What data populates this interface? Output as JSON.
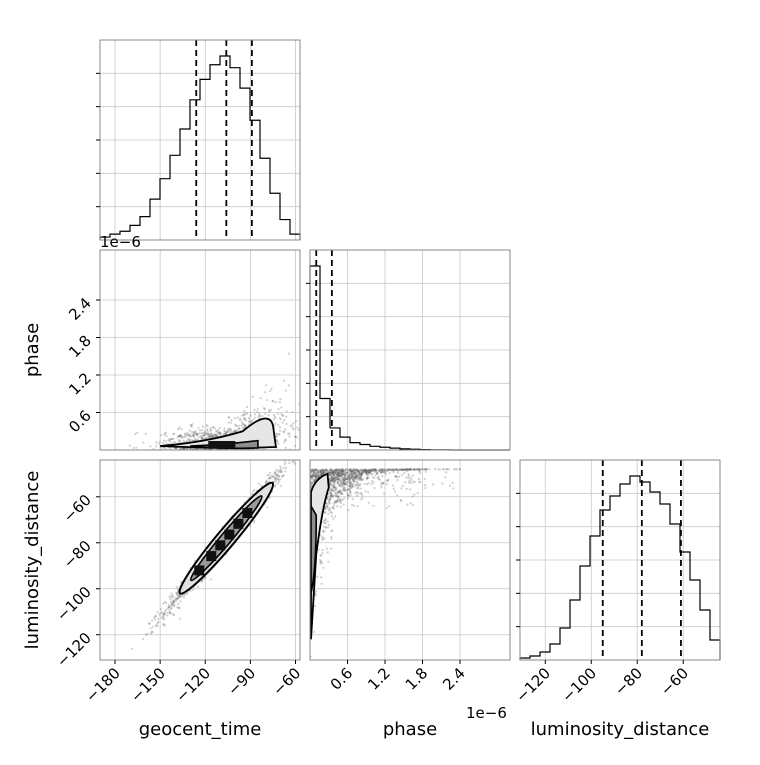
{
  "chart_data": {
    "type": "corner",
    "parameters": [
      "geocent_time",
      "phase",
      "luminosity_distance"
    ],
    "offset_text": "1e−6",
    "quantile_lines": "dashed",
    "grid": true,
    "geocent_time": {
      "range": [
        -190,
        -57
      ],
      "ticks": [
        -180,
        -150,
        -120,
        -90,
        -60
      ],
      "tick_labels": [
        "−180",
        "−150",
        "−120",
        "−90",
        "−60"
      ],
      "quantiles": [
        -126,
        -106,
        -89
      ],
      "hist_edges": [
        -190,
        -183.35,
        -176.7,
        -170.05,
        -163.4,
        -156.75,
        -150.1,
        -143.45,
        -136.8,
        -130.15,
        -123.5,
        -116.85,
        -110.2,
        -103.55,
        -96.9,
        -90.25,
        -83.6,
        -76.95,
        -70.3,
        -63.65,
        -57
      ],
      "hist_counts": [
        1,
        2,
        3,
        5,
        8,
        14,
        21,
        29,
        38,
        48,
        55,
        60,
        63,
        59,
        52,
        41,
        28,
        16,
        7,
        2
      ]
    },
    "phase": {
      "range": [
        0,
        3.2e-06
      ],
      "ticks": [
        6e-07,
        1.2e-06,
        1.8e-06,
        2.4e-06
      ],
      "tick_labels": [
        "0.6",
        "1.2",
        "1.8",
        "2.4"
      ],
      "quantiles": [
        1e-07,
        3.5e-07
      ],
      "hist_edges": [
        0,
        1.6e-07,
        3.2e-07,
        4.8e-07,
        6.4e-07,
        8e-07,
        9.6e-07,
        1.12e-06,
        1.28e-06,
        1.44e-06,
        1.6e-06,
        1.76e-06,
        1.92e-06,
        2.08e-06,
        2.24e-06,
        2.4e-06,
        2.56e-06,
        2.72e-06,
        2.88e-06,
        3.04e-06,
        3.2e-06
      ],
      "hist_counts": [
        100,
        28,
        12,
        7,
        4,
        3,
        2,
        1.5,
        1,
        0.6,
        0.4,
        0.2,
        0.1,
        0.05,
        0,
        0,
        0,
        0,
        0,
        0
      ]
    },
    "luminosity_distance": {
      "range": [
        -131,
        -44
      ],
      "ticks": [
        -120,
        -100,
        -80,
        -60
      ],
      "tick_labels": [
        "−120",
        "−100",
        "−80",
        "−60"
      ],
      "quantiles": [
        -95,
        -78,
        -61
      ],
      "hist_edges": [
        -131,
        -126.65,
        -122.3,
        -117.95,
        -113.6,
        -109.25,
        -104.9,
        -100.55,
        -96.2,
        -91.85,
        -87.5,
        -83.15,
        -78.8,
        -74.45,
        -70.1,
        -65.75,
        -61.4,
        -57.05,
        -52.7,
        -48.35,
        -44
      ],
      "hist_counts": [
        1,
        2,
        4,
        8,
        16,
        30,
        47,
        62,
        75,
        82,
        88,
        92,
        89,
        84,
        78,
        68,
        54,
        40,
        25,
        10
      ]
    }
  }
}
